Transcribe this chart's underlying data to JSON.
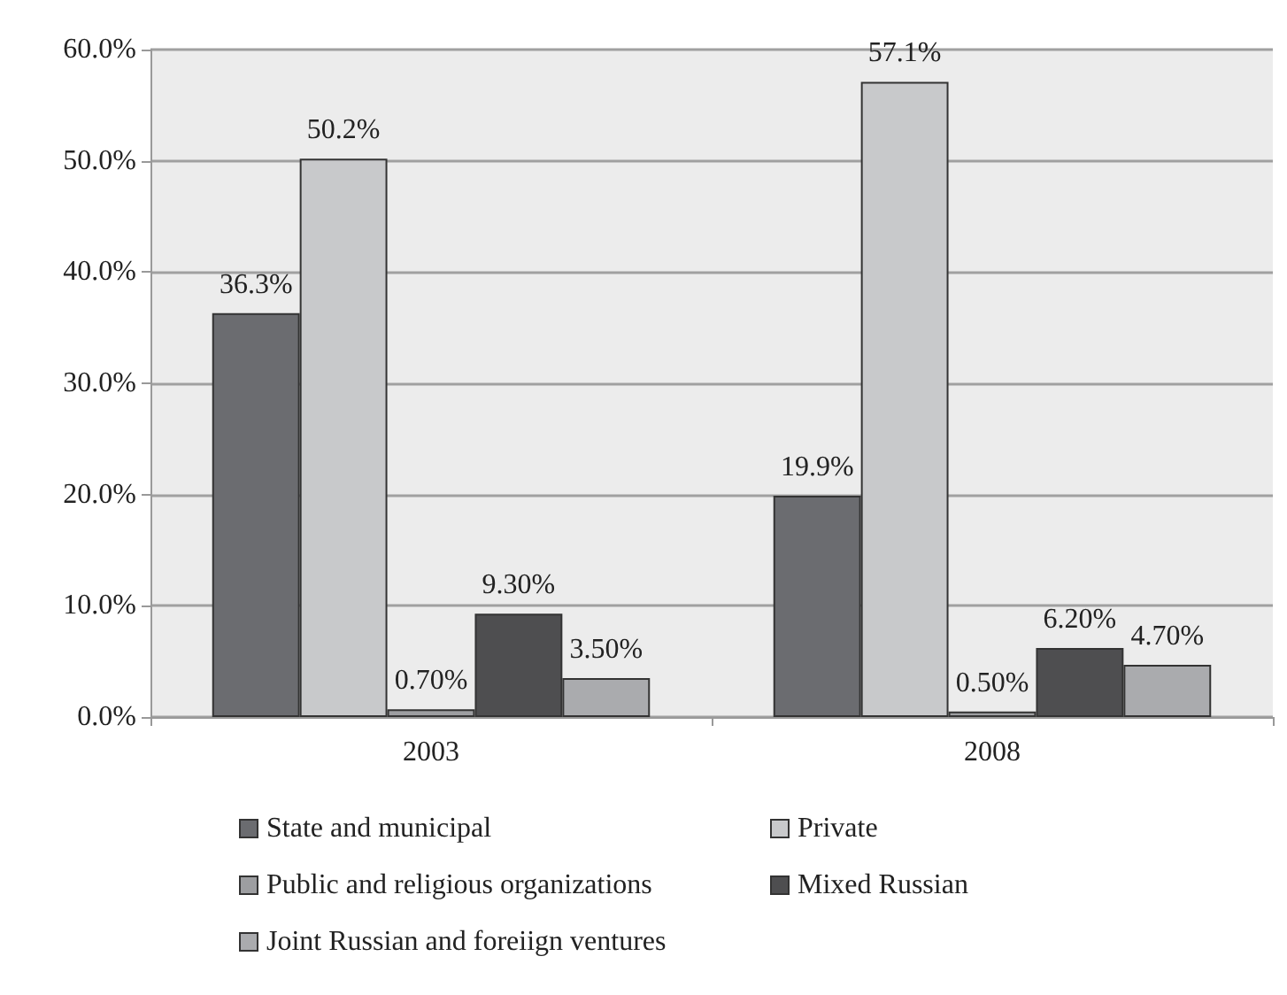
{
  "chart_data": {
    "type": "bar",
    "categories": [
      "2003",
      "2008"
    ],
    "series": [
      {
        "name": "State and municipal",
        "color": "#6b6c70",
        "values": [
          36.3,
          19.9
        ],
        "value_labels": [
          "36.3%",
          "19.9%"
        ]
      },
      {
        "name": "Private",
        "color": "#c8c9cb",
        "values": [
          50.2,
          57.1
        ],
        "value_labels": [
          "50.2%",
          "57.1%"
        ]
      },
      {
        "name": "Public and religious organizations",
        "color": "#9d9ea1",
        "values": [
          0.7,
          0.5
        ],
        "value_labels": [
          "0.70%",
          "0.50%"
        ]
      },
      {
        "name": "Mixed Russian",
        "color": "#4e4e50",
        "values": [
          9.3,
          6.2
        ],
        "value_labels": [
          "9.30%",
          "6.20%"
        ]
      },
      {
        "name": "Joint Russian and foreiign ventures",
        "color": "#aaabae",
        "values": [
          3.5,
          4.7
        ],
        "value_labels": [
          "3.50%",
          "4.70%"
        ]
      }
    ],
    "ylim": [
      0,
      60
    ],
    "yticks": [
      {
        "value": 0,
        "label": "0.0%"
      },
      {
        "value": 10,
        "label": "10.0%"
      },
      {
        "value": 20,
        "label": "20.0%"
      },
      {
        "value": 30,
        "label": "30.0%"
      },
      {
        "value": 40,
        "label": "40.0%"
      },
      {
        "value": 50,
        "label": "50.0%"
      },
      {
        "value": 60,
        "label": "60.0%"
      }
    ],
    "grid": "y",
    "legend": "bottom"
  }
}
